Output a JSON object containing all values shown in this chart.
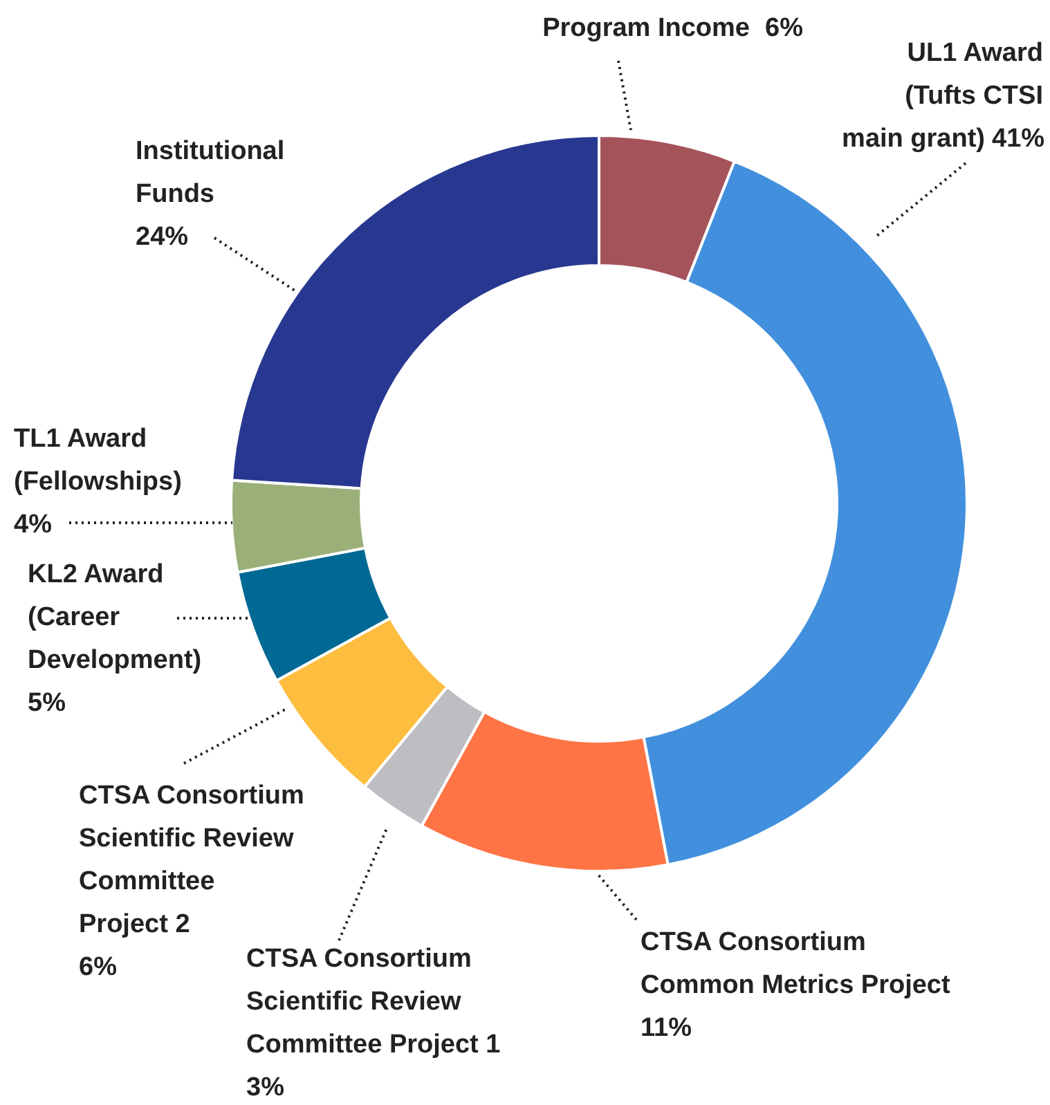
{
  "chart_data": {
    "type": "donut",
    "categories": [
      "Program Income",
      "UL1 Award (Tufts CTSI main grant)",
      "CTSA Consortium Common Metrics Project",
      "CTSA Consortium Scientific Review Committee Project 1",
      "CTSA Consortium Scientific Review Committee Project 2",
      "KL2 Award (Career Development)",
      "TL1 Award (Fellowships)",
      "Institutional Funds"
    ],
    "values": [
      6,
      41,
      11,
      3,
      6,
      5,
      4,
      24
    ],
    "value_labels": [
      "6%",
      "41%",
      "11%",
      "3%",
      "6%",
      "5%",
      "4%",
      "24%"
    ],
    "colors": [
      "#a5535a",
      "#4290dd",
      "#ff7445",
      "#bdbec2",
      "#fdbd3e",
      "#006894",
      "#9ab078",
      "#283891"
    ],
    "legend": false
  }
}
